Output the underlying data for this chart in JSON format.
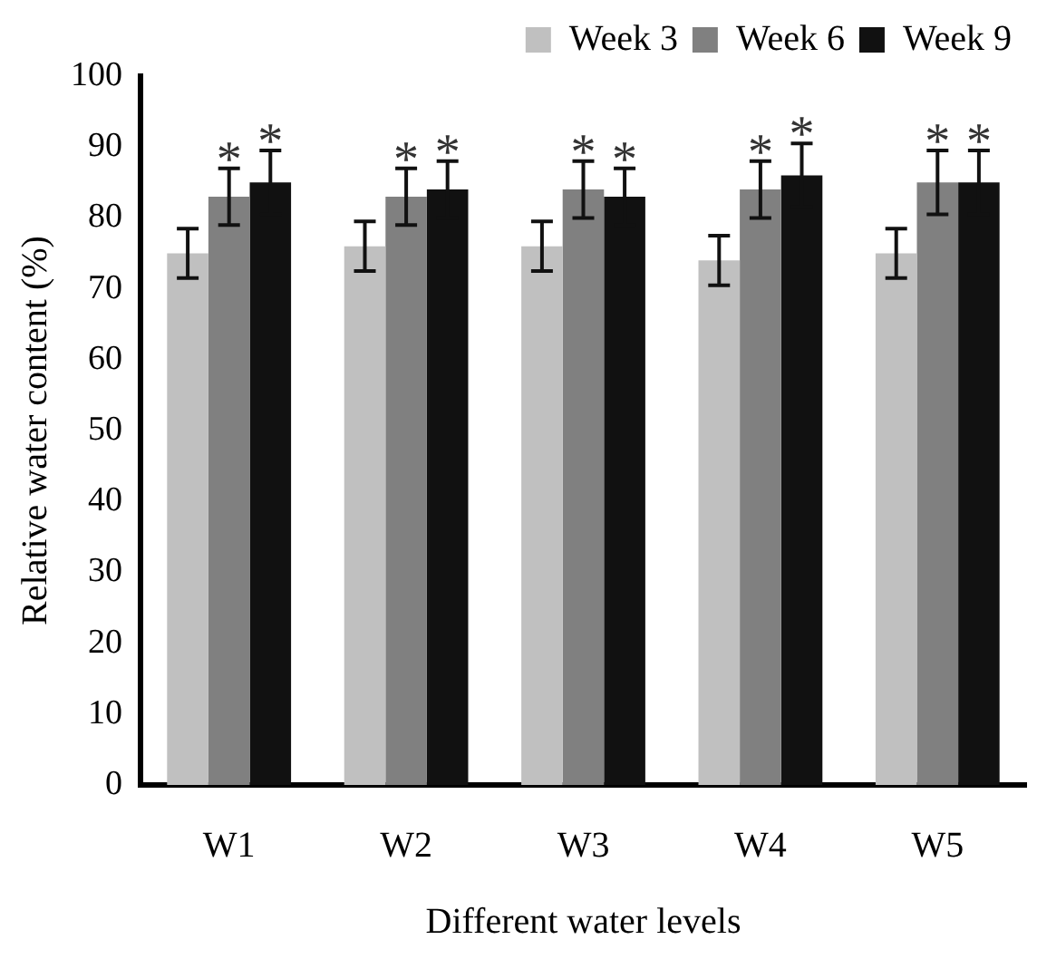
{
  "chart_data": {
    "type": "bar",
    "xlabel": "Different water levels",
    "ylabel": "Relative water content (%)",
    "categories": [
      "W1",
      "W2",
      "W3",
      "W4",
      "W5"
    ],
    "series": [
      {
        "name": "Week 3",
        "color": "#c0c0c0",
        "values": [
          75,
          76,
          76,
          74,
          75
        ],
        "errors": [
          3.5,
          3.5,
          3.5,
          3.5,
          3.5
        ]
      },
      {
        "name": "Week 6",
        "color": "#808080",
        "values": [
          83,
          83,
          84,
          84,
          85
        ],
        "errors": [
          4,
          4,
          4,
          4,
          4.5
        ],
        "value_labels": [
          "*",
          "*",
          "*",
          "*",
          "*"
        ]
      },
      {
        "name": "Week 9",
        "color": "#111111",
        "values": [
          85,
          84,
          83,
          86,
          85
        ],
        "errors": [
          4.5,
          4,
          4,
          4.5,
          4.5
        ],
        "value_labels": [
          "*",
          "*",
          "*",
          "*",
          "*"
        ]
      }
    ],
    "ylim": [
      0,
      100
    ],
    "yticks": [
      0,
      10,
      20,
      30,
      40,
      50,
      60,
      70,
      80,
      90,
      100
    ],
    "grid": false,
    "legend": "top right"
  }
}
